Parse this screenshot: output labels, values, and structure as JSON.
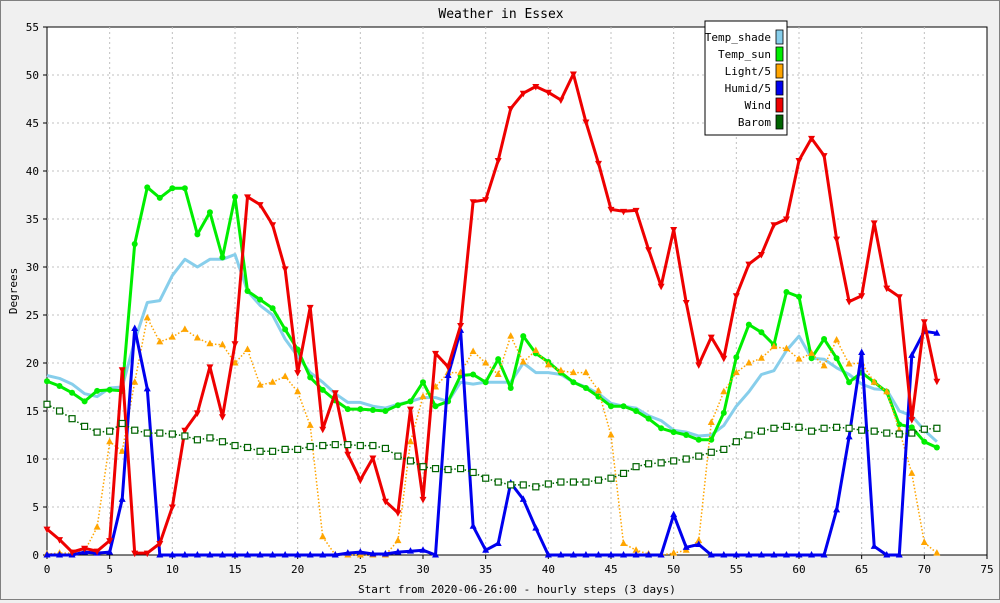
{
  "chart_data": {
    "type": "line",
    "title": "Weather in Essex",
    "xlabel": "Start from 2020-06-26:00 - hourly steps (3 days)",
    "ylabel": "Degrees",
    "xlim": [
      0,
      75
    ],
    "ylim": [
      0,
      55
    ],
    "xticks": [
      0,
      5,
      10,
      15,
      20,
      25,
      30,
      35,
      40,
      45,
      50,
      55,
      60,
      65,
      70,
      75
    ],
    "yticks": [
      0,
      5,
      10,
      15,
      20,
      25,
      30,
      35,
      40,
      45,
      50,
      55
    ],
    "grid": true,
    "legend_position": "top-right",
    "x": [
      0,
      1,
      2,
      3,
      4,
      5,
      6,
      7,
      8,
      9,
      10,
      11,
      12,
      13,
      14,
      15,
      16,
      17,
      18,
      19,
      20,
      21,
      22,
      23,
      24,
      25,
      26,
      27,
      28,
      29,
      30,
      31,
      32,
      33,
      34,
      35,
      36,
      37,
      38,
      39,
      40,
      41,
      42,
      43,
      44,
      45,
      46,
      47,
      48,
      49,
      50,
      51,
      52,
      53,
      54,
      55,
      56,
      57,
      58,
      59,
      60,
      61,
      62,
      63,
      64,
      65,
      66,
      67,
      68,
      69,
      70,
      71
    ],
    "series": [
      {
        "name": "Temp_shade",
        "color": "#87ceeb",
        "marker": "none",
        "line": "solid",
        "width": 3,
        "values": [
          18.7,
          18.4,
          17.8,
          16.8,
          16.5,
          17.4,
          17.5,
          22.3,
          26.3,
          26.5,
          29.1,
          30.8,
          30.0,
          30.8,
          30.8,
          31.3,
          27.5,
          26.0,
          25.0,
          22.5,
          20.7,
          19.0,
          18.0,
          16.8,
          15.9,
          15.9,
          15.5,
          15.3,
          15.7,
          16.0,
          16.4,
          16.4,
          16.0,
          18.0,
          17.8,
          18.0,
          18.0,
          18.0,
          20.0,
          19.0,
          19.0,
          18.8,
          18.0,
          17.5,
          16.8,
          15.8,
          15.5,
          15.3,
          14.5,
          14.0,
          13.0,
          12.8,
          12.4,
          12.5,
          13.5,
          15.5,
          17.0,
          18.8,
          19.2,
          21.3,
          22.8,
          20.5,
          20.4,
          19.5,
          18.8,
          17.8,
          17.3,
          17.2,
          15.0,
          14.5,
          13.0,
          11.8
        ]
      },
      {
        "name": "Temp_sun",
        "color": "#00ee00",
        "marker": "circle",
        "line": "solid",
        "width": 3,
        "values": [
          18.1,
          17.6,
          16.9,
          16.0,
          17.1,
          17.2,
          17.1,
          32.4,
          38.3,
          37.2,
          38.2,
          38.2,
          33.4,
          35.7,
          31.0,
          37.3,
          27.5,
          26.6,
          25.7,
          23.5,
          21.4,
          18.5,
          17.2,
          16.1,
          15.2,
          15.2,
          15.1,
          15.0,
          15.6,
          16.0,
          18.0,
          15.5,
          16.0,
          18.7,
          18.8,
          18.0,
          20.4,
          17.4,
          22.8,
          21.0,
          20.1,
          19.0,
          18.0,
          17.4,
          16.5,
          15.5,
          15.5,
          15.0,
          14.2,
          13.2,
          12.8,
          12.5,
          12.0,
          12.0,
          14.8,
          20.6,
          24.0,
          23.2,
          21.9,
          27.4,
          26.9,
          20.5,
          22.5,
          20.5,
          18.0,
          19.0,
          18.0,
          17.0,
          13.6,
          13.3,
          11.8,
          11.2
        ]
      },
      {
        "name": "Light/5",
        "color": "#ffa500",
        "marker": "triangle-up",
        "line": "dotted",
        "width": 1.5,
        "values": [
          0.1,
          0.2,
          0.2,
          0.4,
          2.9,
          11.8,
          10.8,
          18.0,
          24.7,
          22.2,
          22.7,
          23.5,
          22.6,
          22.0,
          21.9,
          20.0,
          21.4,
          17.7,
          18.0,
          18.6,
          17.0,
          13.5,
          1.9,
          0.0,
          0.0,
          0.0,
          0.0,
          0.0,
          1.5,
          11.8,
          16.5,
          17.5,
          19.0,
          19.0,
          21.2,
          20.0,
          18.8,
          22.8,
          20.1,
          21.3,
          19.8,
          19.2,
          19.0,
          19.0,
          17.1,
          12.5,
          1.2,
          0.5,
          0.1,
          0.0,
          0.2,
          0.5,
          1.5,
          13.8,
          17.0,
          19.0,
          20.0,
          20.5,
          21.7,
          21.5,
          20.4,
          21.0,
          19.7,
          22.4,
          19.9,
          20.0,
          18.0,
          17.0,
          13.0,
          8.5,
          1.3,
          0.2
        ]
      },
      {
        "name": "Humid/5",
        "color": "#0000ee",
        "marker": "triangle-up",
        "line": "solid",
        "width": 3,
        "values": [
          0.0,
          0.0,
          0.0,
          0.3,
          0.2,
          0.3,
          5.8,
          23.6,
          17.3,
          0.0,
          0.0,
          0.0,
          0.0,
          0.0,
          0.0,
          0.0,
          0.0,
          0.0,
          0.0,
          0.0,
          0.0,
          0.0,
          0.0,
          0.0,
          0.2,
          0.3,
          0.1,
          0.1,
          0.3,
          0.4,
          0.5,
          0.0,
          18.7,
          23.4,
          3.0,
          0.5,
          1.2,
          7.5,
          5.8,
          2.8,
          0.0,
          0.0,
          0.0,
          0.0,
          0.0,
          0.0,
          0.0,
          0.0,
          0.0,
          0.0,
          4.2,
          0.8,
          1.1,
          0.0,
          0.0,
          0.0,
          0.0,
          0.0,
          0.0,
          0.0,
          0.0,
          0.0,
          0.0,
          4.7,
          12.3,
          21.1,
          0.9,
          0.0,
          0.0,
          20.8,
          23.3,
          23.1
        ]
      },
      {
        "name": "Wind",
        "color": "#ee0000",
        "marker": "triangle-down",
        "line": "solid",
        "width": 3,
        "values": [
          2.7,
          1.6,
          0.3,
          0.7,
          0.4,
          1.5,
          19.3,
          0.2,
          0.2,
          1.2,
          5.0,
          13.0,
          14.8,
          19.6,
          14.4,
          22.0,
          37.3,
          36.5,
          34.4,
          29.8,
          19.0,
          25.8,
          13.1,
          16.9,
          10.5,
          7.8,
          10.1,
          5.6,
          4.4,
          15.2,
          5.8,
          21.0,
          19.6,
          23.9,
          36.8,
          37.0,
          41.1,
          46.5,
          48.1,
          48.8,
          48.2,
          47.4,
          50.1,
          45.1,
          40.8,
          36.0,
          35.8,
          35.9,
          31.8,
          28.0,
          33.9,
          26.3,
          19.8,
          22.7,
          20.5,
          27.0,
          30.3,
          31.3,
          34.4,
          35.0,
          41.1,
          43.4,
          41.6,
          32.9,
          26.4,
          27.0,
          34.6,
          27.8,
          26.9,
          14.1,
          24.3,
          18.1
        ]
      },
      {
        "name": "Barom",
        "color": "#006400",
        "marker": "square-open",
        "line": "dotted",
        "width": 1.5,
        "values": [
          15.7,
          15.0,
          14.2,
          13.4,
          12.8,
          12.9,
          13.7,
          13.0,
          12.7,
          12.7,
          12.6,
          12.4,
          12.0,
          12.2,
          11.8,
          11.4,
          11.2,
          10.8,
          10.8,
          11.0,
          11.0,
          11.3,
          11.4,
          11.5,
          11.5,
          11.4,
          11.4,
          11.1,
          10.3,
          9.8,
          9.2,
          9.0,
          8.9,
          9.0,
          8.6,
          8.0,
          7.6,
          7.3,
          7.3,
          7.1,
          7.4,
          7.6,
          7.6,
          7.6,
          7.8,
          8.0,
          8.5,
          9.2,
          9.5,
          9.6,
          9.8,
          10.0,
          10.3,
          10.7,
          11.0,
          11.8,
          12.5,
          12.9,
          13.2,
          13.4,
          13.3,
          12.9,
          13.2,
          13.3,
          13.2,
          13.0,
          12.9,
          12.7,
          12.6,
          12.7,
          13.1,
          13.2
        ]
      }
    ]
  }
}
